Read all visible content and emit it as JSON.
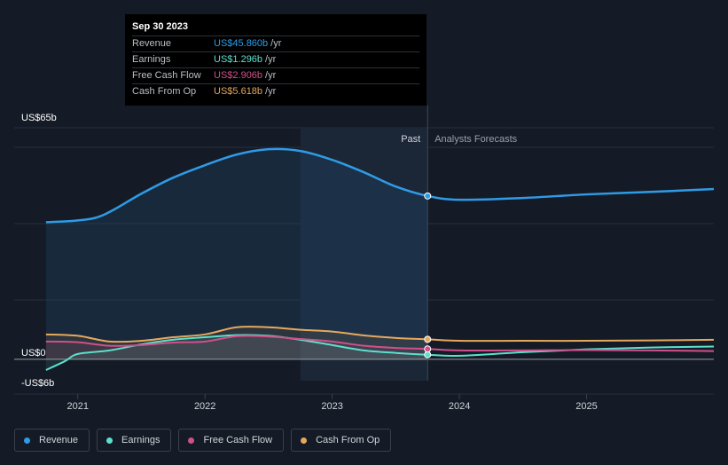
{
  "tooltip": {
    "date": "Sep 30 2023",
    "rows": [
      {
        "label": "Revenue",
        "value": "US$45.860b",
        "unit": "/yr",
        "color": "#2f9be6"
      },
      {
        "label": "Earnings",
        "value": "US$1.296b",
        "unit": "/yr",
        "color": "#5ce0cc"
      },
      {
        "label": "Free Cash Flow",
        "value": "US$2.906b",
        "unit": "/yr",
        "color": "#d0508a"
      },
      {
        "label": "Cash From Op",
        "value": "US$5.618b",
        "unit": "/yr",
        "color": "#e6a85c"
      }
    ]
  },
  "chart_data": {
    "type": "area",
    "x_unit": "year",
    "xlim": [
      2020.5,
      2026.0
    ],
    "ylim": [
      -6,
      65
    ],
    "y_tick_labels": [
      {
        "value": 65,
        "label": "US$65b"
      },
      {
        "value": 0,
        "label": "US$0"
      },
      {
        "value": -6,
        "label": "-US$6b"
      }
    ],
    "x_ticks": [
      {
        "value": 2021,
        "label": "2021"
      },
      {
        "value": 2022,
        "label": "2022"
      },
      {
        "value": 2023,
        "label": "2023"
      },
      {
        "value": 2024,
        "label": "2024"
      },
      {
        "value": 2025,
        "label": "2025"
      }
    ],
    "past_label": "Past",
    "forecast_label": "Analysts Forecasts",
    "divider_x": 2023.75,
    "highlight_range": [
      2022.75,
      2023.75
    ],
    "series": [
      {
        "name": "Revenue",
        "color": "#2f9be6",
        "fill": true,
        "points": [
          [
            2020.75,
            38.5
          ],
          [
            2021.0,
            39.0
          ],
          [
            2021.2,
            40.5
          ],
          [
            2021.5,
            46.5
          ],
          [
            2021.75,
            51.0
          ],
          [
            2022.0,
            54.5
          ],
          [
            2022.25,
            57.5
          ],
          [
            2022.5,
            59.0
          ],
          [
            2022.75,
            58.5
          ],
          [
            2023.0,
            56.0
          ],
          [
            2023.25,
            52.5
          ],
          [
            2023.5,
            48.5
          ],
          [
            2023.75,
            45.86
          ],
          [
            2024.0,
            44.8
          ],
          [
            2024.5,
            45.3
          ],
          [
            2025.0,
            46.3
          ],
          [
            2025.5,
            47.0
          ],
          [
            2026.0,
            47.8
          ]
        ]
      },
      {
        "name": "Earnings",
        "color": "#5ce0cc",
        "fill": false,
        "points": [
          [
            2020.75,
            -3.0
          ],
          [
            2020.9,
            -0.5
          ],
          [
            2021.0,
            1.5
          ],
          [
            2021.25,
            2.5
          ],
          [
            2021.5,
            4.2
          ],
          [
            2021.75,
            5.5
          ],
          [
            2022.0,
            6.2
          ],
          [
            2022.25,
            6.8
          ],
          [
            2022.5,
            6.6
          ],
          [
            2022.75,
            5.5
          ],
          [
            2023.0,
            4.0
          ],
          [
            2023.25,
            2.5
          ],
          [
            2023.5,
            1.8
          ],
          [
            2023.75,
            1.296
          ],
          [
            2024.0,
            1.0
          ],
          [
            2024.5,
            2.0
          ],
          [
            2025.0,
            2.8
          ],
          [
            2025.5,
            3.3
          ],
          [
            2026.0,
            3.6
          ]
        ]
      },
      {
        "name": "Free Cash Flow",
        "color": "#d0508a",
        "fill": false,
        "points": [
          [
            2020.75,
            5.0
          ],
          [
            2021.0,
            4.8
          ],
          [
            2021.25,
            3.8
          ],
          [
            2021.5,
            4.0
          ],
          [
            2021.75,
            4.7
          ],
          [
            2022.0,
            5.0
          ],
          [
            2022.25,
            6.5
          ],
          [
            2022.5,
            6.4
          ],
          [
            2022.75,
            5.7
          ],
          [
            2023.0,
            5.0
          ],
          [
            2023.25,
            3.8
          ],
          [
            2023.5,
            3.2
          ],
          [
            2023.75,
            2.906
          ],
          [
            2024.0,
            2.5
          ],
          [
            2024.5,
            2.5
          ],
          [
            2025.0,
            2.6
          ],
          [
            2025.5,
            2.5
          ],
          [
            2026.0,
            2.3
          ]
        ]
      },
      {
        "name": "Cash From Op",
        "color": "#e6a85c",
        "fill": false,
        "points": [
          [
            2020.75,
            7.0
          ],
          [
            2021.0,
            6.6
          ],
          [
            2021.25,
            5.0
          ],
          [
            2021.5,
            5.2
          ],
          [
            2021.75,
            6.2
          ],
          [
            2022.0,
            7.0
          ],
          [
            2022.25,
            9.0
          ],
          [
            2022.5,
            9.0
          ],
          [
            2022.75,
            8.3
          ],
          [
            2023.0,
            7.8
          ],
          [
            2023.25,
            6.7
          ],
          [
            2023.5,
            6.0
          ],
          [
            2023.75,
            5.618
          ],
          [
            2024.0,
            5.2
          ],
          [
            2024.5,
            5.2
          ],
          [
            2025.0,
            5.2
          ],
          [
            2025.5,
            5.3
          ],
          [
            2026.0,
            5.5
          ]
        ]
      }
    ]
  },
  "legend": [
    {
      "label": "Revenue",
      "color": "#2f9be6"
    },
    {
      "label": "Earnings",
      "color": "#5ce0cc"
    },
    {
      "label": "Free Cash Flow",
      "color": "#d0508a"
    },
    {
      "label": "Cash From Op",
      "color": "#e6a85c"
    }
  ]
}
